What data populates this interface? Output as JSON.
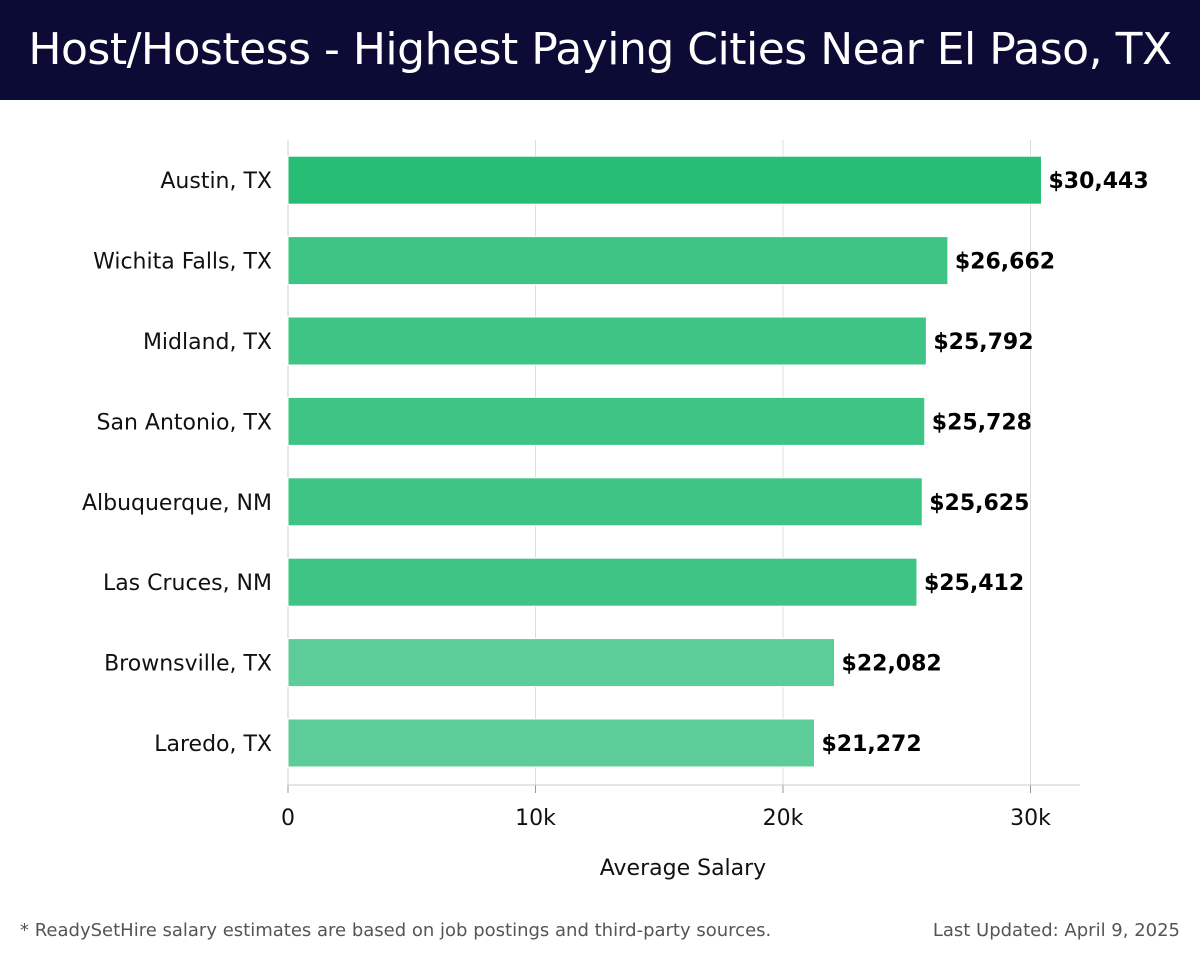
{
  "header": {
    "title": "Host/Hostess - Highest Paying Cities Near El Paso, TX"
  },
  "footer": {
    "footnote": "* ReadySetHire salary estimates are based on job postings and third-party sources.",
    "updated": "Last Updated: April 9, 2025"
  },
  "colors": {
    "header_bg": "#0b0b36",
    "bar_top": "#27bd74",
    "bar_mid": "#3ec485",
    "bar_low": "#5ccc98",
    "grid": "#dddddd",
    "text": "#111111"
  },
  "chart_data": {
    "type": "bar",
    "orientation": "horizontal",
    "categories": [
      "Austin, TX",
      "Wichita Falls, TX",
      "Midland, TX",
      "San Antonio, TX",
      "Albuquerque, NM",
      "Las Cruces, NM",
      "Brownsville, TX",
      "Laredo, TX"
    ],
    "values": [
      30443,
      26662,
      25792,
      25728,
      25625,
      25412,
      22082,
      21272
    ],
    "value_labels": [
      "$30,443",
      "$26,662",
      "$25,792",
      "$25,728",
      "$25,625",
      "$25,412",
      "$22,082",
      "$21,272"
    ],
    "xlabel": "Average Salary",
    "ylabel": "",
    "xlim": [
      0,
      32000
    ],
    "xticks": [
      0,
      10000,
      20000,
      30000
    ],
    "xtick_labels": [
      "0",
      "10k",
      "20k",
      "30k"
    ],
    "grid": true
  }
}
